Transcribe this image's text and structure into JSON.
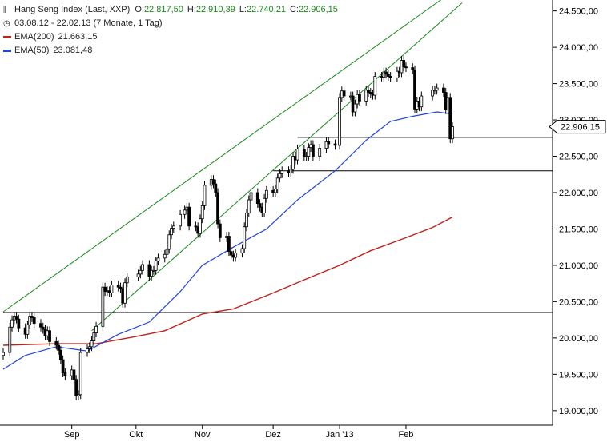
{
  "legend": {
    "instrument": "Hang Seng Index (Last, XXP)",
    "ohlc": {
      "o_label": "O:",
      "o": "22.817,50",
      "h_label": "H:",
      "h": "22.910,39",
      "l_label": "L:",
      "l": "22.740,21",
      "c_label": "C:",
      "c": "22.906,15"
    },
    "period": "03.08.12 - 22.02.13 (7 Monate, 1 Tag)",
    "ema200_label": "EMA(200)",
    "ema200_value": "21.663,15",
    "ema50_label": "EMA(50)",
    "ema50_value": "23.081,48"
  },
  "price_tag": "22.906,15",
  "colors": {
    "candle": "#000000",
    "ema200": "#c0221a",
    "ema50": "#2244dd",
    "channel": "#1a8a1a",
    "hline": "#000000",
    "legend_value": "#1a8a1a"
  },
  "chart_data": {
    "type": "candlestick",
    "title": "Hang Seng Index (Last, XXP)",
    "ylim": [
      18800,
      24650
    ],
    "y_ticks": [
      19000,
      19500,
      20000,
      20500,
      21000,
      21500,
      22000,
      22500,
      23000,
      23500,
      24000,
      24500
    ],
    "y_tick_labels": [
      "19.000,00",
      "19.500,00",
      "20.000,00",
      "20.500,00",
      "21.000,00",
      "21.500,00",
      "22.000,00",
      "22.500,00",
      "23.000,00",
      "23.500,00",
      "24.000,00",
      "24.500,00"
    ],
    "x_ticks": [
      {
        "label": "Sep",
        "date": "2012-09-03"
      },
      {
        "label": "Okt",
        "date": "2012-10-02"
      },
      {
        "label": "Nov",
        "date": "2012-11-01"
      },
      {
        "label": "Dez",
        "date": "2012-12-03"
      },
      {
        "label": "Jan '13",
        "date": "2013-01-02"
      },
      {
        "label": "Feb",
        "date": "2013-02-01"
      }
    ],
    "x_range": [
      "2012-08-03",
      "2013-02-22"
    ],
    "close": [
      [
        "2012-08-03",
        19800
      ],
      [
        "2012-08-06",
        20150
      ],
      [
        "2012-08-07",
        20250
      ],
      [
        "2012-08-08",
        20300
      ],
      [
        "2012-08-09",
        20260
      ],
      [
        "2012-08-10",
        20140
      ],
      [
        "2012-08-13",
        20050
      ],
      [
        "2012-08-14",
        20180
      ],
      [
        "2012-08-15",
        20300
      ],
      [
        "2012-08-16",
        20280
      ],
      [
        "2012-08-17",
        20200
      ],
      [
        "2012-08-20",
        20150
      ],
      [
        "2012-08-21",
        20120
      ],
      [
        "2012-08-22",
        20030
      ],
      [
        "2012-08-23",
        20100
      ],
      [
        "2012-08-24",
        19950
      ],
      [
        "2012-08-27",
        19900
      ],
      [
        "2012-08-28",
        19830
      ],
      [
        "2012-08-29",
        19700
      ],
      [
        "2012-08-30",
        19520
      ],
      [
        "2012-08-31",
        19480
      ],
      [
        "2012-09-03",
        19560
      ],
      [
        "2012-09-04",
        19430
      ],
      [
        "2012-09-05",
        19200
      ],
      [
        "2012-09-06",
        19220
      ],
      [
        "2012-09-07",
        19800
      ],
      [
        "2012-09-10",
        19850
      ],
      [
        "2012-09-11",
        19880
      ],
      [
        "2012-09-12",
        19960
      ],
      [
        "2012-09-13",
        20070
      ],
      [
        "2012-09-14",
        20160
      ],
      [
        "2012-09-17",
        20700
      ],
      [
        "2012-09-18",
        20640
      ],
      [
        "2012-09-19",
        20650
      ],
      [
        "2012-09-20",
        20620
      ],
      [
        "2012-09-21",
        20730
      ],
      [
        "2012-09-24",
        20700
      ],
      [
        "2012-09-25",
        20680
      ],
      [
        "2012-09-26",
        20480
      ],
      [
        "2012-09-27",
        20760
      ],
      [
        "2012-09-28",
        20840
      ],
      [
        "2012-10-03",
        20880
      ],
      [
        "2012-10-04",
        20930
      ],
      [
        "2012-10-05",
        21010
      ],
      [
        "2012-10-08",
        20850
      ],
      [
        "2012-10-09",
        20930
      ],
      [
        "2012-10-10",
        20930
      ],
      [
        "2012-10-11",
        21060
      ],
      [
        "2012-10-12",
        21100
      ],
      [
        "2012-10-15",
        21150
      ],
      [
        "2012-10-16",
        21220
      ],
      [
        "2012-10-17",
        21420
      ],
      [
        "2012-10-18",
        21510
      ],
      [
        "2012-10-19",
        21540
      ],
      [
        "2012-10-22",
        21700
      ],
      [
        "2012-10-24",
        21760
      ],
      [
        "2012-10-25",
        21800
      ],
      [
        "2012-10-26",
        21540
      ],
      [
        "2012-10-29",
        21530
      ],
      [
        "2012-10-30",
        21440
      ],
      [
        "2012-10-31",
        21640
      ],
      [
        "2012-11-01",
        21820
      ],
      [
        "2012-11-02",
        22100
      ],
      [
        "2012-11-05",
        22180
      ],
      [
        "2012-11-06",
        22120
      ],
      [
        "2012-11-07",
        22000
      ],
      [
        "2012-11-08",
        21570
      ],
      [
        "2012-11-09",
        21380
      ],
      [
        "2012-11-12",
        21400
      ],
      [
        "2012-11-13",
        21190
      ],
      [
        "2012-11-14",
        21140
      ],
      [
        "2012-11-15",
        21110
      ],
      [
        "2012-11-16",
        21170
      ],
      [
        "2012-11-19",
        21230
      ],
      [
        "2012-11-20",
        21530
      ],
      [
        "2012-11-21",
        21720
      ],
      [
        "2012-11-22",
        21900
      ],
      [
        "2012-11-23",
        22000
      ],
      [
        "2012-11-26",
        21850
      ],
      [
        "2012-11-27",
        21800
      ],
      [
        "2012-11-28",
        21720
      ],
      [
        "2012-11-29",
        21920
      ],
      [
        "2012-11-30",
        22030
      ],
      [
        "2012-12-03",
        22000
      ],
      [
        "2012-12-04",
        22050
      ],
      [
        "2012-12-05",
        22200
      ],
      [
        "2012-12-06",
        22260
      ],
      [
        "2012-12-07",
        22300
      ],
      [
        "2012-12-10",
        22270
      ],
      [
        "2012-12-11",
        22320
      ],
      [
        "2012-12-12",
        22500
      ],
      [
        "2012-12-13",
        22450
      ],
      [
        "2012-12-14",
        22600
      ],
      [
        "2012-12-17",
        22500
      ],
      [
        "2012-12-18",
        22500
      ],
      [
        "2012-12-19",
        22620
      ],
      [
        "2012-12-20",
        22660
      ],
      [
        "2012-12-21",
        22500
      ],
      [
        "2012-12-24",
        22610
      ],
      [
        "2012-12-27",
        22700
      ],
      [
        "2012-12-28",
        22670
      ],
      [
        "2012-12-31",
        22650
      ],
      [
        "2013-01-02",
        23310
      ],
      [
        "2013-01-03",
        23400
      ],
      [
        "2013-01-04",
        23330
      ],
      [
        "2013-01-07",
        23330
      ],
      [
        "2013-01-08",
        23110
      ],
      [
        "2013-01-09",
        23220
      ],
      [
        "2013-01-10",
        23350
      ],
      [
        "2013-01-11",
        23260
      ],
      [
        "2013-01-14",
        23410
      ],
      [
        "2013-01-15",
        23380
      ],
      [
        "2013-01-16",
        23360
      ],
      [
        "2013-01-17",
        23340
      ],
      [
        "2013-01-18",
        23600
      ],
      [
        "2013-01-21",
        23590
      ],
      [
        "2013-01-22",
        23660
      ],
      [
        "2013-01-23",
        23630
      ],
      [
        "2013-01-24",
        23600
      ],
      [
        "2013-01-25",
        23580
      ],
      [
        "2013-01-28",
        23670
      ],
      [
        "2013-01-29",
        23650
      ],
      [
        "2013-01-30",
        23820
      ],
      [
        "2013-01-31",
        23730
      ],
      [
        "2013-02-01",
        23720
      ],
      [
        "2013-02-04",
        23690
      ],
      [
        "2013-02-05",
        23150
      ],
      [
        "2013-02-06",
        23260
      ],
      [
        "2013-02-07",
        23180
      ],
      [
        "2013-02-08",
        23330
      ],
      [
        "2013-02-13",
        23410
      ],
      [
        "2013-02-14",
        23410
      ],
      [
        "2013-02-15",
        23440
      ],
      [
        "2013-02-18",
        23380
      ],
      [
        "2013-02-19",
        23140
      ],
      [
        "2013-02-20",
        23310
      ],
      [
        "2013-02-21",
        22740
      ],
      [
        "2013-02-22",
        22906
      ]
    ],
    "ema200": [
      [
        "2012-08-03",
        19900
      ],
      [
        "2012-08-27",
        19920
      ],
      [
        "2012-09-14",
        19920
      ],
      [
        "2012-10-02",
        20020
      ],
      [
        "2012-10-15",
        20100
      ],
      [
        "2012-11-01",
        20330
      ],
      [
        "2012-11-15",
        20400
      ],
      [
        "2012-12-03",
        20620
      ],
      [
        "2012-12-17",
        20800
      ],
      [
        "2013-01-02",
        21000
      ],
      [
        "2013-01-16",
        21200
      ],
      [
        "2013-02-01",
        21380
      ],
      [
        "2013-02-13",
        21520
      ],
      [
        "2013-02-22",
        21663
      ]
    ],
    "ema50": [
      [
        "2012-08-03",
        19570
      ],
      [
        "2012-08-13",
        19760
      ],
      [
        "2012-08-27",
        19880
      ],
      [
        "2012-09-10",
        19820
      ],
      [
        "2012-09-24",
        20050
      ],
      [
        "2012-10-08",
        20220
      ],
      [
        "2012-10-22",
        20640
      ],
      [
        "2012-11-01",
        21000
      ],
      [
        "2012-11-15",
        21250
      ],
      [
        "2012-11-30",
        21500
      ],
      [
        "2012-12-14",
        21900
      ],
      [
        "2012-12-31",
        22300
      ],
      [
        "2013-01-14",
        22720
      ],
      [
        "2013-01-25",
        22980
      ],
      [
        "2013-02-04",
        23050
      ],
      [
        "2013-02-15",
        23110
      ],
      [
        "2013-02-22",
        23081
      ]
    ],
    "channel_lines": [
      {
        "from": [
          "2012-08-03",
          20360
        ],
        "to": [
          "2013-02-22",
          24860
        ]
      },
      {
        "from": [
          "2012-09-12",
          20100
        ],
        "to": [
          "2013-02-22",
          24610
        ]
      }
    ],
    "support_lines": [
      {
        "from": [
          "2012-08-03",
          20350
        ],
        "to": [
          "2013-02-22",
          20350
        ]
      },
      {
        "from": [
          "2012-12-03",
          22300
        ],
        "to": [
          "2013-02-22",
          22300
        ]
      },
      {
        "from": [
          "2012-12-14",
          22760
        ],
        "to": [
          "2013-02-22",
          22760
        ]
      }
    ]
  }
}
